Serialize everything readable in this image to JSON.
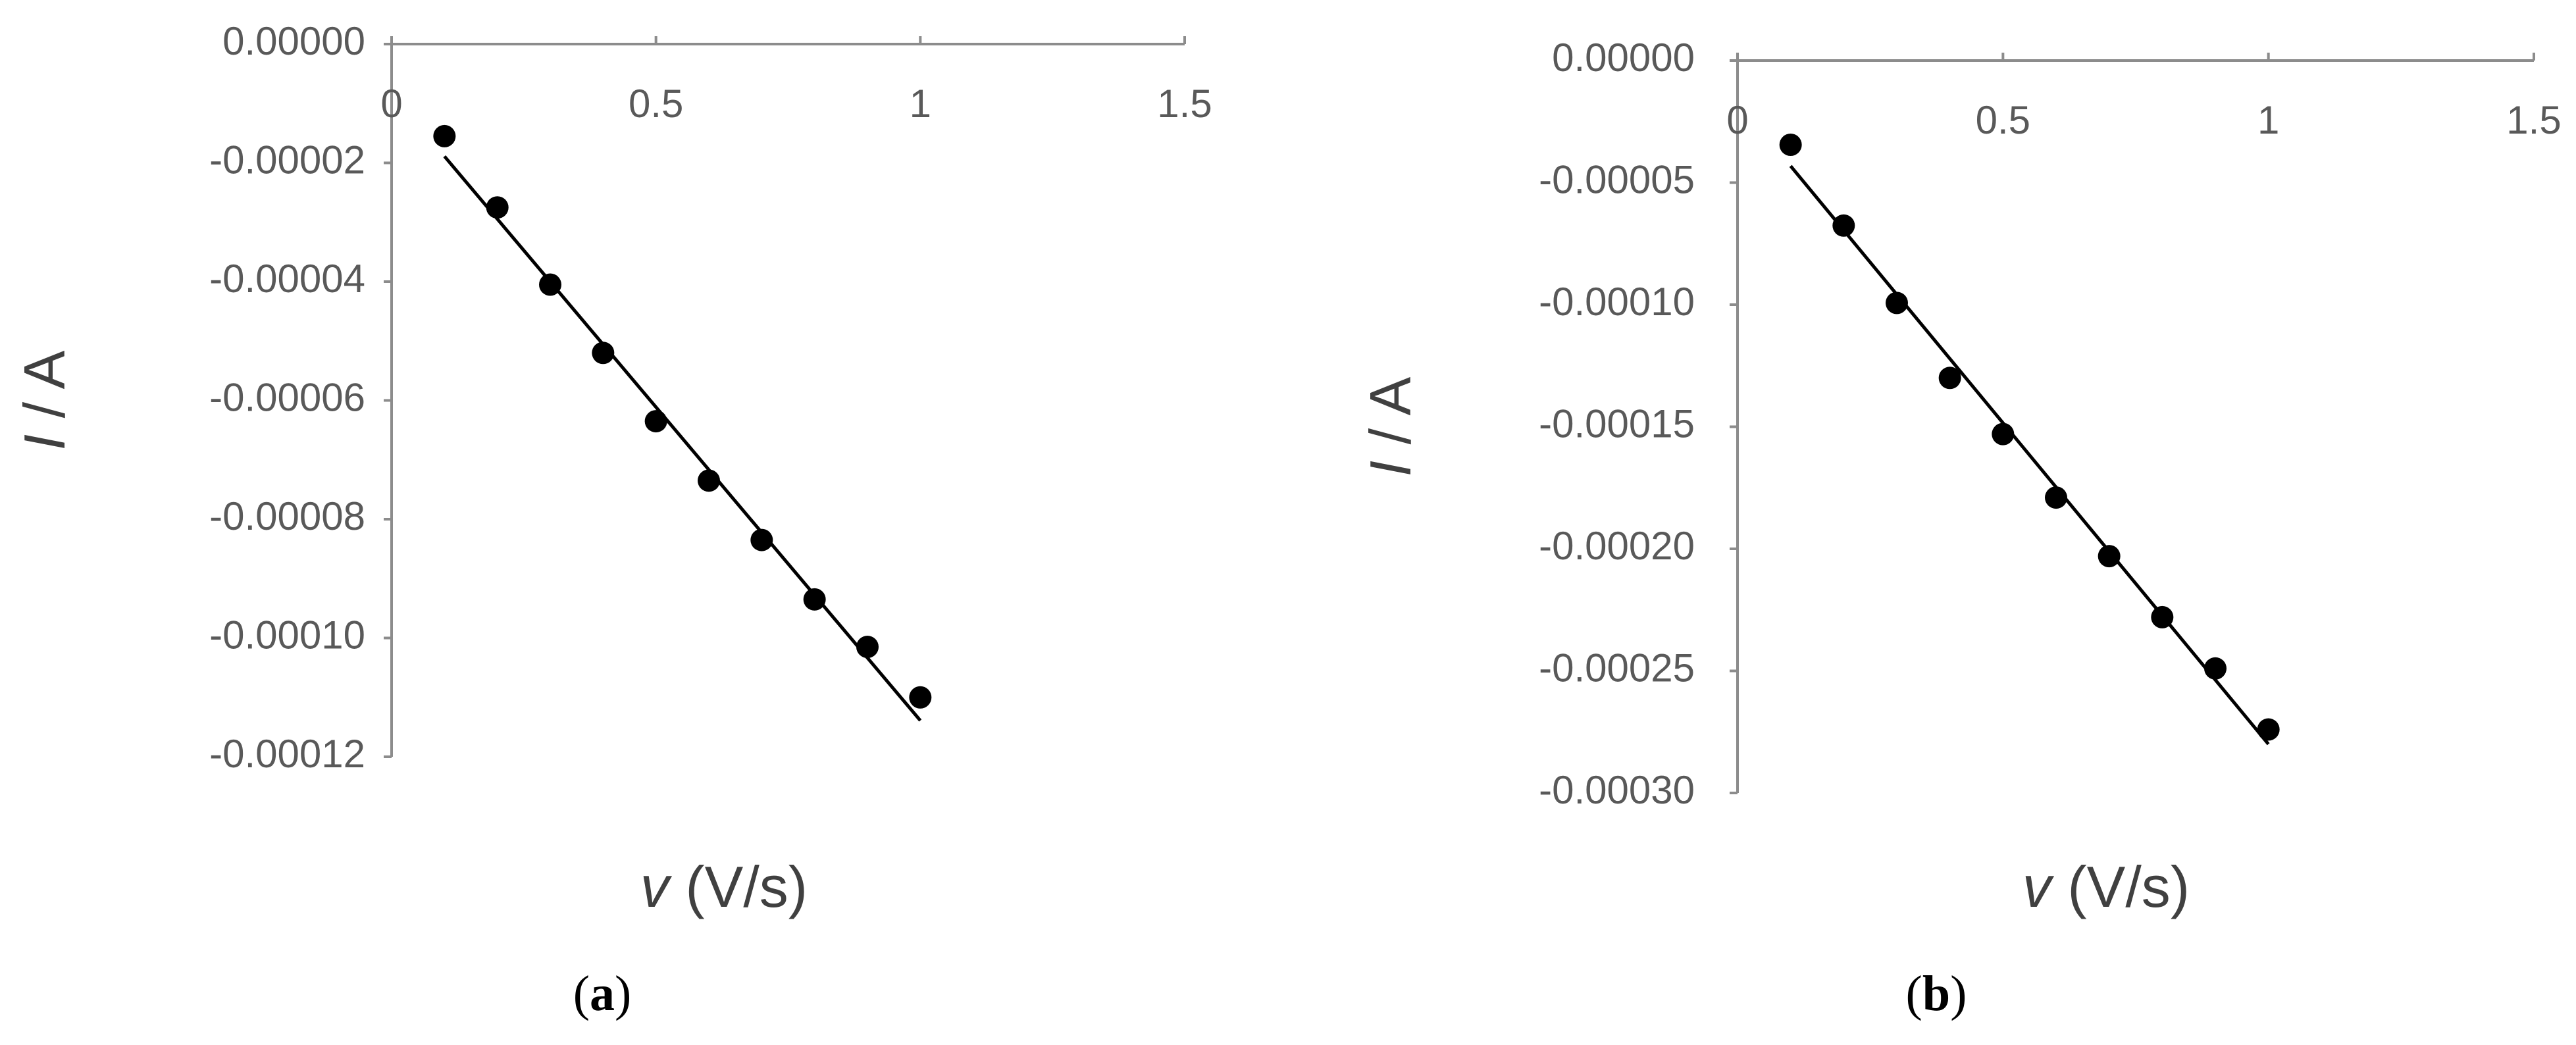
{
  "chart_data": [
    {
      "type": "scatter",
      "panel_label": [
        "(",
        "a",
        ")"
      ],
      "x_label_symbol": "v",
      "x_label_unit": "(V/s)",
      "y_label_symbol": "I",
      "y_label_unit": "/ A",
      "x": [
        0.1,
        0.2,
        0.3,
        0.4,
        0.5,
        0.6,
        0.7,
        0.8,
        0.9,
        1.0
      ],
      "values": [
        -1.55e-05,
        -2.75e-05,
        -4.05e-05,
        -5.2e-05,
        -6.35e-05,
        -7.35e-05,
        -8.35e-05,
        -9.35e-05,
        -0.0001015,
        -0.00011
      ],
      "color": "#000000",
      "trendline": {
        "x": [
          0.1,
          1.0
        ],
        "y": [
          -1.89e-05,
          -0.0001139
        ],
        "color": "#000000"
      },
      "xlim": [
        0,
        1.5
      ],
      "xticks": [
        0,
        0.5,
        1,
        1.5
      ],
      "ylim": [
        -0.00012,
        0
      ],
      "yticks": [
        {
          "value": 0,
          "label": "0.00000"
        },
        {
          "value": -2e-05,
          "label": "-0.00002"
        },
        {
          "value": -4e-05,
          "label": "-0.00004"
        },
        {
          "value": -6e-05,
          "label": "-0.00006"
        },
        {
          "value": -8e-05,
          "label": "-0.00008"
        },
        {
          "value": -0.0001,
          "label": "-0.00010"
        },
        {
          "value": -0.00012,
          "label": "-0.00012"
        }
      ],
      "grid": false
    },
    {
      "type": "scatter",
      "panel_label": [
        "(",
        "b",
        ")"
      ],
      "x_label_symbol": "v",
      "x_label_unit": "(V/s)",
      "y_label_symbol": "I",
      "y_label_unit": "/ A",
      "x": [
        0.1,
        0.2,
        0.3,
        0.4,
        0.5,
        0.6,
        0.7,
        0.8,
        0.9,
        1.0
      ],
      "values": [
        -3.45e-05,
        -6.76e-05,
        -9.93e-05,
        -0.00013,
        -0.000153,
        -0.000179,
        -0.000203,
        -0.000228,
        -0.000249,
        -0.000274
      ],
      "color": "#000000",
      "trendline": {
        "x": [
          0.1,
          1.0
        ],
        "y": [
          -4.32e-05,
          -0.00028
        ],
        "color": "#000000"
      },
      "xlim": [
        0,
        1.5
      ],
      "xticks": [
        0,
        0.5,
        1,
        1.5
      ],
      "ylim": [
        -0.0003,
        0
      ],
      "yticks": [
        {
          "value": 0,
          "label": "0.00000"
        },
        {
          "value": -5e-05,
          "label": "-0.00005"
        },
        {
          "value": -0.0001,
          "label": "-0.00010"
        },
        {
          "value": -0.00015,
          "label": "-0.00015"
        },
        {
          "value": -0.0002,
          "label": "-0.00020"
        },
        {
          "value": -0.00025,
          "label": "-0.00025"
        },
        {
          "value": -0.0003,
          "label": "-0.00030"
        }
      ],
      "grid": false
    }
  ]
}
